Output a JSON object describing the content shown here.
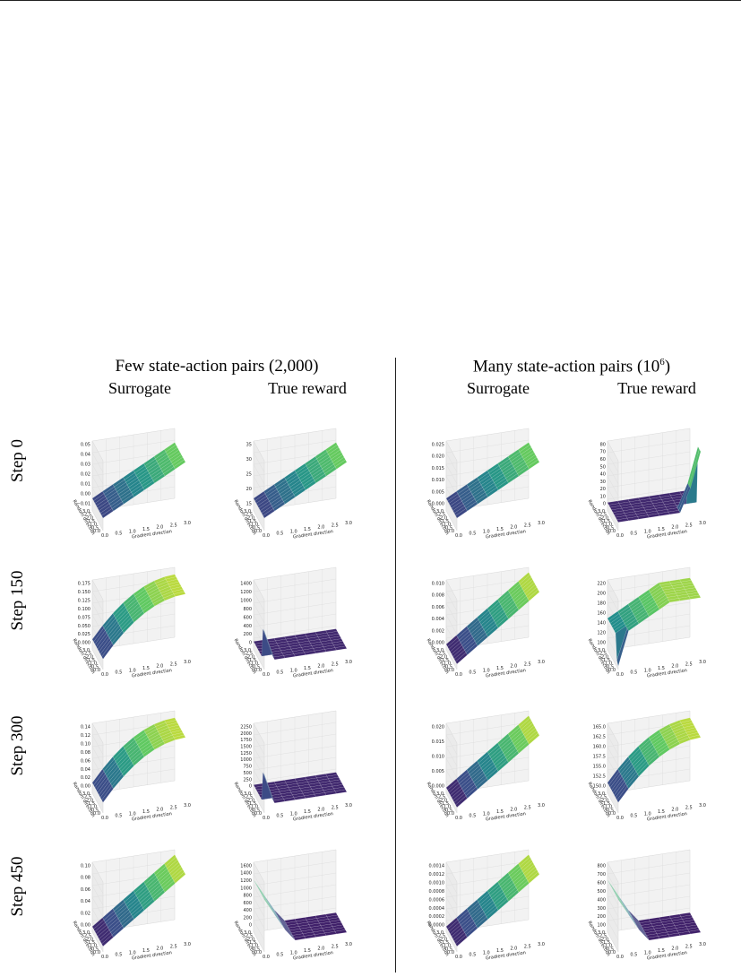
{
  "headers": {
    "left_title": "Few state-action pairs (2,000)",
    "right_title_prefix": "Many state-action pairs (10",
    "right_title_exp": "6",
    "right_title_suffix": ")",
    "surrogate": "Surrogate",
    "true_reward": "True reward"
  },
  "rows": [
    "Step 0",
    "Step 150",
    "Step 300",
    "Step 450"
  ],
  "chart_data": {
    "type": "surface3d",
    "x_axis_label": "Gradient direction",
    "y_axis_label": "Random direction",
    "x_ticks": [
      "0.0",
      "0.5",
      "1.0",
      "1.5",
      "2.0",
      "2.5",
      "3.0"
    ],
    "y_ticks": [
      "0.0",
      "0.5",
      "1.0",
      "1.5",
      "2.0",
      "2.5",
      "3.0"
    ],
    "colormap": "viridis",
    "panels": [
      {
        "row": 0,
        "col": 0,
        "z_ticks": [
          "−0.01",
          "0.00",
          "0.01",
          "0.02",
          "0.03",
          "0.04",
          "0.05"
        ],
        "shape": "rising"
      },
      {
        "row": 0,
        "col": 1,
        "z_ticks": [
          "15",
          "20",
          "25",
          "30",
          "35"
        ],
        "shape": "rising"
      },
      {
        "row": 0,
        "col": 2,
        "z_ticks": [
          "0.000",
          "0.005",
          "0.010",
          "0.015",
          "0.020",
          "0.025"
        ],
        "shape": "rising"
      },
      {
        "row": 0,
        "col": 3,
        "z_ticks": [
          "0",
          "10",
          "20",
          "30",
          "40",
          "50",
          "60",
          "70",
          "80"
        ],
        "shape": "flat-spike-far"
      },
      {
        "row": 1,
        "col": 0,
        "z_ticks": [
          "0.000",
          "0.025",
          "0.050",
          "0.075",
          "0.100",
          "0.125",
          "0.150",
          "0.175"
        ],
        "shape": "rising-concave"
      },
      {
        "row": 1,
        "col": 1,
        "z_ticks": [
          "0",
          "200",
          "400",
          "600",
          "800",
          "1000",
          "1200",
          "1400"
        ],
        "shape": "flat-spike-near"
      },
      {
        "row": 1,
        "col": 2,
        "z_ticks": [
          "0.000",
          "0.002",
          "0.004",
          "0.006",
          "0.008",
          "0.010"
        ],
        "shape": "rising-steep"
      },
      {
        "row": 1,
        "col": 3,
        "z_ticks": [
          "100",
          "120",
          "140",
          "160",
          "180",
          "200",
          "220"
        ],
        "shape": "plateau-dip"
      },
      {
        "row": 2,
        "col": 0,
        "z_ticks": [
          "0.00",
          "0.02",
          "0.04",
          "0.06",
          "0.08",
          "0.10",
          "0.12",
          "0.14"
        ],
        "shape": "rising-concave"
      },
      {
        "row": 2,
        "col": 1,
        "z_ticks": [
          "0",
          "250",
          "500",
          "750",
          "1000",
          "1250",
          "1500",
          "1750",
          "2000",
          "2250"
        ],
        "shape": "flat-spike-near"
      },
      {
        "row": 2,
        "col": 2,
        "z_ticks": [
          "0.000",
          "0.005",
          "0.010",
          "0.015",
          "0.020"
        ],
        "shape": "rising-steep"
      },
      {
        "row": 2,
        "col": 3,
        "z_ticks": [
          "150.0",
          "152.5",
          "155.0",
          "157.5",
          "160.0",
          "162.5",
          "165.0"
        ],
        "shape": "rising-concave"
      },
      {
        "row": 3,
        "col": 0,
        "z_ticks": [
          "0.00",
          "0.02",
          "0.04",
          "0.06",
          "0.08",
          "0.10"
        ],
        "shape": "rising-steep"
      },
      {
        "row": 3,
        "col": 1,
        "z_ticks": [
          "0",
          "200",
          "400",
          "600",
          "800",
          "1000",
          "1200",
          "1400",
          "1600"
        ],
        "shape": "falling-flat"
      },
      {
        "row": 3,
        "col": 2,
        "z_ticks": [
          "0.0000",
          "0.0002",
          "0.0004",
          "0.0006",
          "0.0008",
          "0.0010",
          "0.0012",
          "0.0014"
        ],
        "shape": "rising-steep"
      },
      {
        "row": 3,
        "col": 3,
        "z_ticks": [
          "100",
          "200",
          "300",
          "400",
          "500",
          "600",
          "700",
          "800"
        ],
        "shape": "falling-flat"
      }
    ]
  }
}
